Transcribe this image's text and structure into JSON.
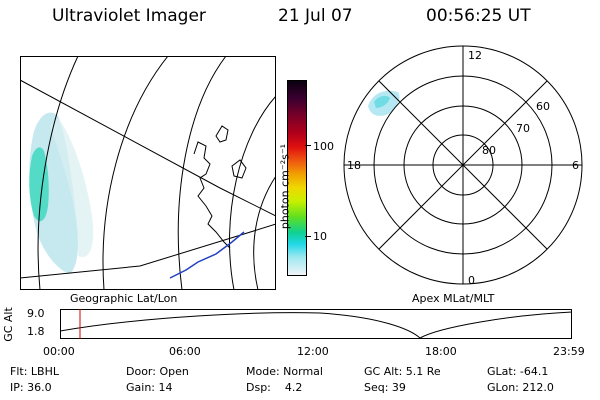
{
  "header": {
    "instrument": "Ultraviolet Imager",
    "date": "21 Jul 07",
    "time": "00:56:25 UT"
  },
  "geo_panel": {
    "caption": "Geographic Lat/Lon"
  },
  "apex_panel": {
    "caption": "Apex MLat/MLT",
    "mlt_labels": {
      "top": "12",
      "right": "6",
      "bottom": "0",
      "left": "18"
    },
    "lat_labels": [
      "60",
      "70",
      "80"
    ]
  },
  "colorbar": {
    "unit_label": "photon cm⁻²s⁻¹",
    "tick_labels": [
      "100",
      "10"
    ],
    "colors": [
      "#0a0010",
      "#3a0030",
      "#7a0028",
      "#b0001a",
      "#e01010",
      "#f06010",
      "#f0a000",
      "#f0d800",
      "#c8f000",
      "#60e020",
      "#10d090",
      "#20d8e8",
      "#a0e8f0",
      "#f0f4f8"
    ]
  },
  "timeline": {
    "axis_label": "GC Alt",
    "y_labels": [
      "9.0",
      "1.8"
    ],
    "x_labels": [
      "00:00",
      "06:00",
      "12:00",
      "18:00",
      "23:59"
    ],
    "current_time_fraction": 0.039
  },
  "footer": {
    "rows": [
      [
        "Flt: LBHL",
        "Door: Open",
        "Mode: Normal",
        "GC Alt: 5.1 Re",
        "GLat: -64.1"
      ],
      [
        "IP: 36.0",
        "Gain: 14",
        "Dsp:    4.2",
        "Seq: 39",
        "GLon: 212.0"
      ]
    ]
  },
  "colors": {
    "aurora": "#20d0c0",
    "coast_blue": "#2040c0",
    "time_marker": "#d00000"
  }
}
